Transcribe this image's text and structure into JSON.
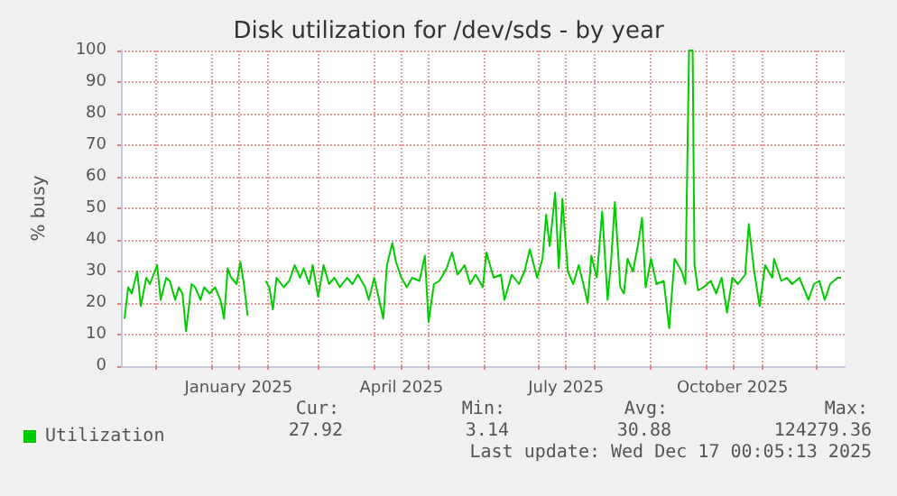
{
  "chart_data": {
    "type": "line",
    "title": "Disk utilization for /dev/sds - by year",
    "ylabel": "% busy",
    "x": [
      "2024-11-14",
      "2024-11-16",
      "2024-11-18",
      "2024-11-21",
      "2024-11-23",
      "2024-11-26",
      "2024-11-28",
      "2024-12-02",
      "2024-12-04",
      "2024-12-07",
      "2024-12-09",
      "2024-12-12",
      "2024-12-14",
      "2024-12-16",
      "2024-12-18",
      "2024-12-21",
      "2024-12-23",
      "2024-12-26",
      "2024-12-28",
      "2024-12-31",
      "2025-01-03",
      "2025-01-06",
      "2025-01-08",
      "2025-01-10",
      "2025-01-12",
      "2025-01-15",
      "2025-01-17",
      "2025-01-19",
      "2025-01-21",
      "2025-01-26",
      "2025-01-31",
      "2025-02-02",
      "2025-02-04",
      "2025-02-06",
      "2025-02-10",
      "2025-02-13",
      "2025-02-16",
      "2025-02-19",
      "2025-02-21",
      "2025-02-24",
      "2025-02-26",
      "2025-03-01",
      "2025-03-04",
      "2025-03-07",
      "2025-03-10",
      "2025-03-13",
      "2025-03-17",
      "2025-03-20",
      "2025-03-23",
      "2025-03-27",
      "2025-03-29",
      "2025-04-01",
      "2025-04-06",
      "2025-04-08",
      "2025-04-11",
      "2025-04-13",
      "2025-04-16",
      "2025-04-19",
      "2025-04-22",
      "2025-04-26",
      "2025-04-29",
      "2025-05-01",
      "2025-05-04",
      "2025-05-07",
      "2025-05-11",
      "2025-05-14",
      "2025-05-17",
      "2025-05-21",
      "2025-05-24",
      "2025-05-27",
      "2025-05-31",
      "2025-06-02",
      "2025-06-06",
      "2025-06-10",
      "2025-06-12",
      "2025-06-16",
      "2025-06-20",
      "2025-06-23",
      "2025-06-26",
      "2025-06-30",
      "2025-07-03",
      "2025-07-05",
      "2025-07-07",
      "2025-07-10",
      "2025-07-12",
      "2025-07-14",
      "2025-07-17",
      "2025-07-20",
      "2025-07-23",
      "2025-07-26",
      "2025-07-28",
      "2025-07-30",
      "2025-08-02",
      "2025-08-05",
      "2025-08-08",
      "2025-08-10",
      "2025-08-12",
      "2025-08-15",
      "2025-08-17",
      "2025-08-19",
      "2025-08-22",
      "2025-08-25",
      "2025-08-27",
      "2025-08-29",
      "2025-09-01",
      "2025-09-04",
      "2025-09-08",
      "2025-09-11",
      "2025-09-14",
      "2025-09-18",
      "2025-09-20",
      "2025-09-22",
      "2025-09-24",
      "2025-09-25",
      "2025-09-27",
      "2025-09-30",
      "2025-10-04",
      "2025-10-07",
      "2025-10-10",
      "2025-10-13",
      "2025-10-16",
      "2025-10-19",
      "2025-10-23",
      "2025-10-25",
      "2025-10-28",
      "2025-10-31",
      "2025-11-03",
      "2025-11-07",
      "2025-11-08",
      "2025-11-12",
      "2025-11-15",
      "2025-11-18",
      "2025-11-22",
      "2025-11-27",
      "2025-11-30",
      "2025-12-03",
      "2025-12-06",
      "2025-12-09",
      "2025-12-13",
      "2025-12-15"
    ],
    "series": [
      {
        "name": "Utilization",
        "color": "#00cc00",
        "values": [
          15,
          25,
          23,
          30,
          19,
          28,
          26,
          32,
          21,
          28,
          27,
          21,
          25,
          23,
          11,
          26,
          25,
          21,
          25,
          23,
          25,
          21,
          15,
          31,
          28,
          26,
          33,
          26,
          16,
          null,
          27,
          25,
          18,
          28,
          25,
          27,
          32,
          28,
          31,
          26,
          32,
          22,
          32,
          26,
          28,
          25,
          28,
          26,
          29,
          25,
          21,
          28,
          15,
          32,
          39,
          33,
          28,
          25,
          28,
          27,
          35,
          14,
          26,
          27,
          31,
          36,
          29,
          32,
          26,
          29,
          25,
          36,
          28,
          29,
          21,
          29,
          26,
          30,
          37,
          28,
          34,
          48,
          38,
          55,
          31,
          53,
          30,
          26,
          32,
          25,
          20,
          35,
          28,
          49,
          21,
          34,
          52,
          25,
          23,
          34,
          30,
          39,
          47,
          25,
          34,
          26,
          27,
          12,
          34,
          30,
          26,
          100,
          100,
          32,
          24,
          25,
          27,
          23,
          28,
          17,
          28,
          26,
          29,
          45,
          30,
          19,
          32,
          28,
          34,
          27,
          28,
          26,
          28,
          21,
          26,
          27,
          21,
          26,
          28,
          28
        ]
      }
    ],
    "xlim": [
      "2024-11-12",
      "2025-12-17"
    ],
    "xticks": [
      {
        "value": "2024-12-01",
        "label": null
      },
      {
        "value": "2025-01-01",
        "label": null
      },
      {
        "value": "2025-01-16",
        "label": "January 2025"
      },
      {
        "value": "2025-02-01",
        "label": null
      },
      {
        "value": "2025-03-01",
        "label": null
      },
      {
        "value": "2025-04-01",
        "label": null
      },
      {
        "value": "2025-04-16",
        "label": "April 2025"
      },
      {
        "value": "2025-05-01",
        "label": null
      },
      {
        "value": "2025-06-01",
        "label": null
      },
      {
        "value": "2025-07-01",
        "label": null
      },
      {
        "value": "2025-07-16",
        "label": "July 2025"
      },
      {
        "value": "2025-08-01",
        "label": null
      },
      {
        "value": "2025-09-01",
        "label": null
      },
      {
        "value": "2025-10-01",
        "label": null
      },
      {
        "value": "2025-10-16",
        "label": "October 2025"
      },
      {
        "value": "2025-11-01",
        "label": null
      },
      {
        "value": "2025-12-01",
        "label": null
      }
    ],
    "ylim": [
      0,
      100
    ],
    "yticks": [
      0,
      10,
      20,
      30,
      40,
      50,
      60,
      70,
      80,
      90,
      100
    ],
    "grid": true,
    "legend": "bottom left",
    "marker": "none",
    "line_style": "solid",
    "annotations": [
      "Cur:",
      "Min:",
      "Avg:",
      "Max:",
      "27.92",
      "3.14",
      "30.88",
      "124279.36",
      "Last update: Wed Dec 17 00:05:13 2025"
    ]
  }
}
